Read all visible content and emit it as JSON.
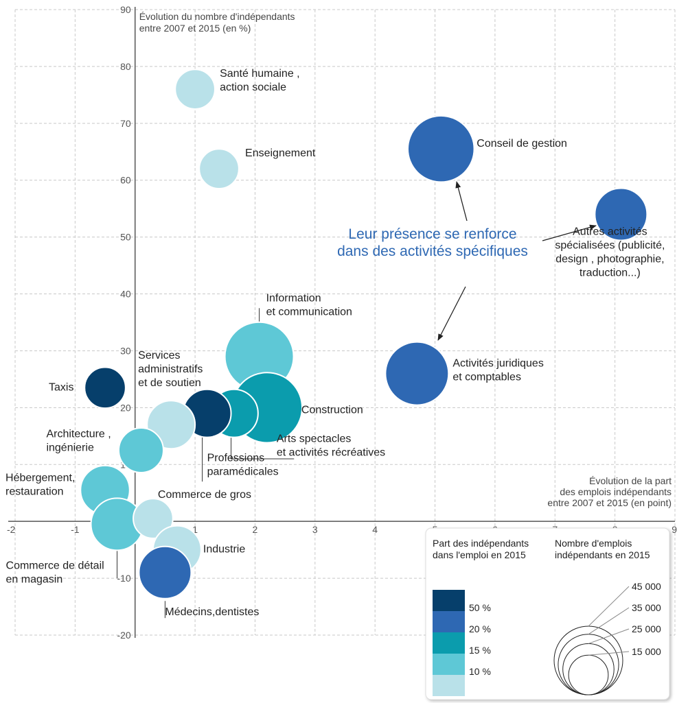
{
  "chart_data": {
    "type": "scatter",
    "title": "",
    "xlabel": [
      "Évolution de la part",
      "des emplois indépendants",
      "entre 2007 et 2015  (en point)"
    ],
    "ylabel": [
      "Évolution du nombre d'indépendants",
      "entre 2007 et 2015 (en %)"
    ],
    "xlim": [
      -2,
      9
    ],
    "ylim": [
      -20,
      90
    ],
    "xticks": [
      "-2",
      "-1",
      "0",
      "1",
      "2",
      "3",
      "4",
      "5",
      "6",
      "7",
      "8",
      "9"
    ],
    "yticks": [
      "-20",
      "-10",
      "0",
      "10",
      "20",
      "30",
      "40",
      "50",
      "60",
      "70",
      "80",
      "90"
    ],
    "grid": true,
    "points": [
      {
        "name": "Santé humaine , action sociale",
        "label_lines": [
          "Santé humaine ,",
          "action sociale"
        ],
        "x": 1.0,
        "y": 76,
        "size": 15000,
        "share_class": "< 10 %",
        "color": "#b9e1e9"
      },
      {
        "name": "Enseignement",
        "label_lines": [
          "Enseignement"
        ],
        "x": 1.4,
        "y": 62,
        "size": 15000,
        "share_class": "< 10 %",
        "color": "#b9e1e9"
      },
      {
        "name": "Conseil de gestion",
        "label_lines": [
          "Conseil de gestion"
        ],
        "x": 5.1,
        "y": 65.5,
        "size": 42000,
        "share_class": "20 %",
        "color": "#2e68b3"
      },
      {
        "name": "Autres activités spécialisées (publicité, design , photographie, traduction...)",
        "label_lines": [
          "Autres activités",
          "spécialisées (publicité,",
          "design , photographie,",
          "traduction...)"
        ],
        "x": 8.1,
        "y": 54,
        "size": 26000,
        "share_class": "20 %",
        "color": "#2e68b3"
      },
      {
        "name": "Activités juridiques et comptables",
        "label_lines": [
          "Activités juridiques",
          "et comptables"
        ],
        "x": 4.7,
        "y": 26,
        "size": 38000,
        "share_class": "20 %",
        "color": "#2e68b3"
      },
      {
        "name": "Information et communication",
        "label_lines": [
          "Information",
          "et communication"
        ],
        "x": 2.07,
        "y": 29,
        "size": 45000,
        "share_class": "10 %",
        "color": "#5ec8d6"
      },
      {
        "name": "Construction",
        "label_lines": [
          "Construction"
        ],
        "x": 2.2,
        "y": 20,
        "size": 47000,
        "share_class": "15 %",
        "color": "#0b9cad"
      },
      {
        "name": "Arts spectacles et activités récréatives",
        "label_lines": [
          "Arts spectacles",
          "et activités récréatives"
        ],
        "x": 1.65,
        "y": 19,
        "size": 22000,
        "share_class": "15 %",
        "color": "#0b9cad"
      },
      {
        "name": "Professions paramédicales",
        "label_lines": [
          "Professions",
          "paramédicales"
        ],
        "x": 1.2,
        "y": 19,
        "size": 22000,
        "share_class": "50 %",
        "color": "#063f6b"
      },
      {
        "name": "Services administratifs et de soutien",
        "label_lines": [
          "Services",
          "administratifs",
          "et de soutien"
        ],
        "x": 0.6,
        "y": 17,
        "size": 22000,
        "share_class": "< 10 %",
        "color": "#b9e1e9"
      },
      {
        "name": "Taxis",
        "label_lines": [
          "Taxis"
        ],
        "x": -0.5,
        "y": 23.5,
        "size": 16000,
        "share_class": "50 %",
        "color": "#063f6b"
      },
      {
        "name": "Architecture , ingénierie",
        "label_lines": [
          "Architecture ,",
          "ingénierie"
        ],
        "x": 0.1,
        "y": 12.5,
        "size": 19000,
        "share_class": "10 %",
        "color": "#5ec8d6"
      },
      {
        "name": "Hébergement, restauration",
        "label_lines": [
          "Hébergement,",
          "restauration"
        ],
        "x": -0.5,
        "y": 5.5,
        "size": 23000,
        "share_class": "10 %",
        "color": "#5ec8d6"
      },
      {
        "name": "Commerce de détail en magasin",
        "label_lines": [
          "Commerce de détail",
          "en magasin"
        ],
        "x": -0.3,
        "y": -0.5,
        "size": 26000,
        "share_class": "10 %",
        "color": "#5ec8d6"
      },
      {
        "name": "Commerce de gros",
        "label_lines": [
          "Commerce de gros"
        ],
        "x": 0.3,
        "y": 0.5,
        "size": 15000,
        "share_class": "< 10 %",
        "color": "#b9e1e9"
      },
      {
        "name": "Industrie",
        "label_lines": [
          "Industrie"
        ],
        "x": 0.7,
        "y": -5,
        "size": 22000,
        "share_class": "< 10 %",
        "color": "#b9e1e9"
      },
      {
        "name": "Médecins,dentistes",
        "label_lines": [
          "Médecins,dentistes"
        ],
        "x": 0.5,
        "y": -9,
        "size": 26000,
        "share_class": "20 %",
        "color": "#2e68b3"
      }
    ],
    "annotation": {
      "lines": [
        "Leur présence se renforce",
        "dans des activités spécifiques"
      ],
      "color": "#2e68b3",
      "arrows_to": [
        "Conseil de gestion",
        "Autres activités spécialisées (publicité, design , photographie, traduction...)",
        "Activités juridiques et comptables"
      ]
    },
    "legend": {
      "placement": "bottom-right",
      "color_title": [
        "Part  des indépendants",
        "dans l'emploi en 2015"
      ],
      "color_items": [
        {
          "label": "50 %",
          "color": "#063f6b"
        },
        {
          "label": "20 %",
          "color": "#2e68b3"
        },
        {
          "label": "15 %",
          "color": "#0b9cad"
        },
        {
          "label": "10 %",
          "color": "#5ec8d6"
        },
        {
          "label": "",
          "color": "#b9e1e9"
        }
      ],
      "size_title": [
        "Nombre  d'emplois",
        "indépendants en 2015"
      ],
      "size_items": [
        {
          "label": "45 000",
          "value": 45000
        },
        {
          "label": "35 000",
          "value": 35000
        },
        {
          "label": "25 000",
          "value": 25000
        },
        {
          "label": "15 000",
          "value": 15000
        }
      ]
    }
  }
}
